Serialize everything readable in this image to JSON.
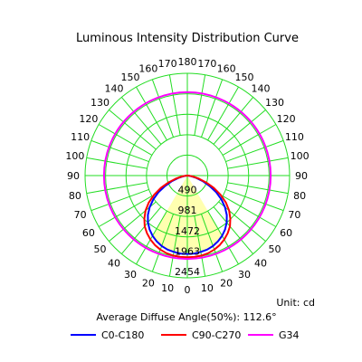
{
  "chart_data": {
    "type": "polar",
    "title": "Luminous Intensity Distribution Curve",
    "unit_label": "Unit: cd",
    "footer_text": "Average Diffuse Angle(50%): 112.6°",
    "radial_ticks": [
      490,
      981,
      1472,
      1963,
      2454
    ],
    "r_max": 2454,
    "angle_ticks_left": [
      "90",
      "80",
      "70",
      "60",
      "50",
      "40",
      "30",
      "20",
      "10",
      "0"
    ],
    "angle_ticks_right": [
      "10",
      "20",
      "30",
      "40",
      "50",
      "60",
      "70",
      "80",
      "90"
    ],
    "angle_ticks_top_left": [
      "100",
      "110",
      "120",
      "130",
      "140",
      "150",
      "160",
      "170",
      "180"
    ],
    "angle_ticks_top_right": [
      "170",
      "160",
      "150",
      "140",
      "130",
      "120",
      "110",
      "100"
    ],
    "grid": true,
    "legend_position": "bottom",
    "series": [
      {
        "name": "C0-C180",
        "color": "#0000ff",
        "fill": false,
        "angles": [
          0,
          5,
          10,
          15,
          20,
          25,
          30,
          35,
          40,
          45,
          50,
          55,
          60,
          65,
          70,
          75,
          80,
          85,
          90
        ],
        "values": [
          1880,
          1880,
          1860,
          1840,
          1800,
          1740,
          1670,
          1580,
          1470,
          1340,
          1180,
          1000,
          800,
          590,
          390,
          220,
          100,
          30,
          0
        ]
      },
      {
        "name": "C90-C270",
        "color": "#ff0000",
        "fill": false,
        "angles": [
          0,
          5,
          10,
          15,
          20,
          25,
          30,
          35,
          40,
          45,
          50,
          55,
          60,
          65,
          70,
          75,
          80,
          85,
          90
        ],
        "values": [
          1960,
          1960,
          1950,
          1930,
          1890,
          1840,
          1770,
          1690,
          1590,
          1460,
          1310,
          1130,
          920,
          700,
          480,
          290,
          140,
          45,
          0
        ]
      },
      {
        "name": "G34",
        "color": "#ff00ff",
        "fill": false,
        "shape": "circle",
        "value": 2000
      }
    ],
    "beam_fill_color": "#ffffb0",
    "beam_fill_half_angle": 34
  }
}
